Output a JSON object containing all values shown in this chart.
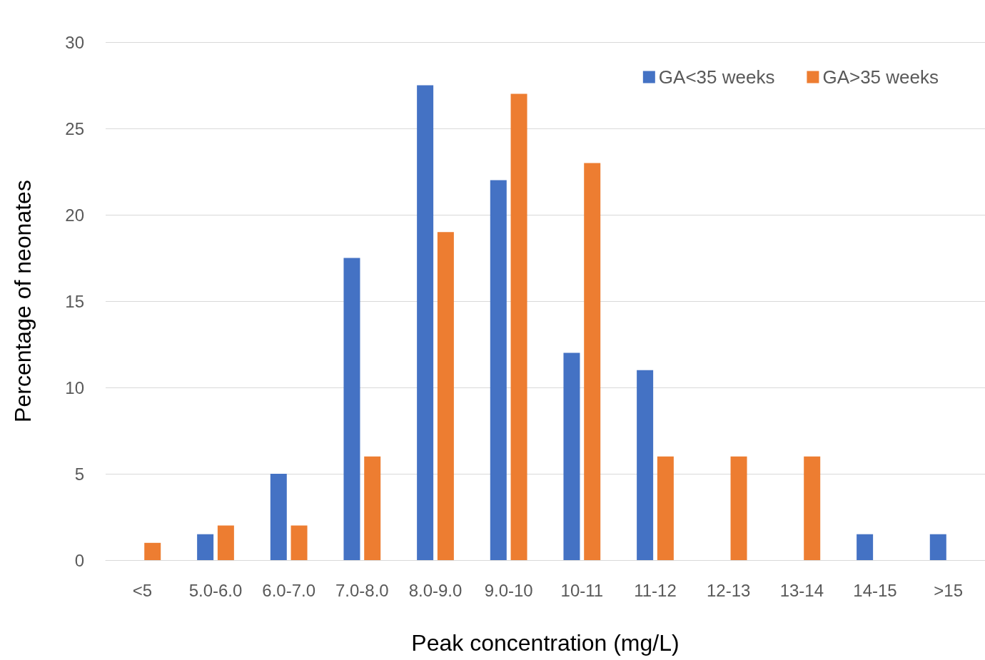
{
  "chart_data": {
    "type": "bar",
    "xlabel": "Peak concentration (mg/L)",
    "ylabel": "Percentage of neonates",
    "categories": [
      "<5",
      "5.0-6.0",
      "6.0-7.0",
      "7.0-8.0",
      "8.0-9.0",
      "9.0-10",
      "10-11",
      "11-12",
      "12-13",
      "13-14",
      "14-15",
      ">15"
    ],
    "series": [
      {
        "name": "GA<35 weeks",
        "color": "#4472c4",
        "values": [
          0,
          1.5,
          5,
          17.5,
          27.5,
          22,
          12,
          11,
          0,
          0,
          1.5,
          1.5
        ]
      },
      {
        "name": "GA>35 weeks",
        "color": "#ed7d31",
        "values": [
          1,
          2,
          2,
          6,
          19,
          27,
          23,
          6,
          6,
          6,
          0,
          0
        ]
      }
    ],
    "ylim": [
      0,
      30
    ],
    "yticks": [
      0,
      5,
      10,
      15,
      20,
      25,
      30
    ],
    "grid": "y",
    "legend": "top right"
  }
}
